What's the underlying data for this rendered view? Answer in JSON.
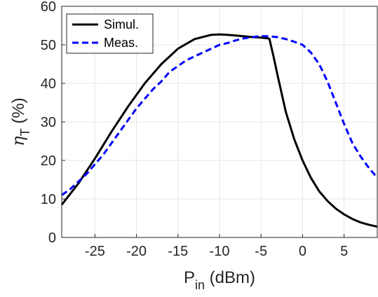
{
  "chart_data": {
    "type": "line",
    "xlabel": {
      "main": "P",
      "sub": "in",
      "rest": " (dBm)"
    },
    "ylabel": {
      "main": "η",
      "sub": "T",
      "rest": " (%)"
    },
    "xlim": [
      -29,
      9
    ],
    "ylim": [
      0,
      60
    ],
    "xticks": [
      -25,
      -20,
      -15,
      -10,
      -5,
      0,
      5
    ],
    "yticks": [
      0,
      10,
      20,
      30,
      40,
      50,
      60
    ],
    "grid": true,
    "legend_position": "top-left",
    "series": [
      {
        "name": "Simul.",
        "color": "#000000",
        "style": "solid",
        "x": [
          -29,
          -27,
          -25,
          -23,
          -21,
          -19,
          -17,
          -15,
          -13,
          -11,
          -10,
          -9,
          -8,
          -7,
          -6,
          -5,
          -4,
          -3.5,
          -3,
          -2,
          -1,
          0,
          1,
          2,
          3,
          4,
          5,
          6,
          7,
          8,
          9
        ],
        "y": [
          8.5,
          14,
          20.5,
          27.5,
          34,
          40,
          45,
          49,
          51.5,
          52.6,
          52.7,
          52.6,
          52.4,
          52.2,
          52,
          51.9,
          51.6,
          47,
          42,
          32.5,
          25.5,
          20,
          15.5,
          12,
          9.5,
          7.5,
          6,
          4.8,
          3.9,
          3.3,
          2.8
        ]
      },
      {
        "name": "Meas.",
        "color": "#0000ff",
        "style": "dashed",
        "x": [
          -29,
          -28,
          -27,
          -26,
          -25,
          -24,
          -23,
          -22,
          -21,
          -20,
          -19,
          -18,
          -17,
          -16,
          -15,
          -14,
          -13,
          -12,
          -11,
          -10,
          -9,
          -8,
          -7,
          -6,
          -5,
          -4,
          -3,
          -2,
          -1,
          0,
          1,
          2,
          3,
          4,
          5,
          6,
          7,
          8,
          9
        ],
        "y": [
          11,
          12.5,
          14.5,
          16.5,
          19,
          21.5,
          24.5,
          27.5,
          30.5,
          33.5,
          36,
          38.5,
          40.5,
          43,
          44.5,
          46,
          47,
          48,
          49,
          50,
          50.5,
          51.2,
          51.7,
          52,
          52.3,
          52.2,
          52,
          51.5,
          50.8,
          50,
          48,
          45,
          40.5,
          35,
          29.5,
          24.5,
          21,
          18,
          15.5
        ]
      }
    ]
  }
}
